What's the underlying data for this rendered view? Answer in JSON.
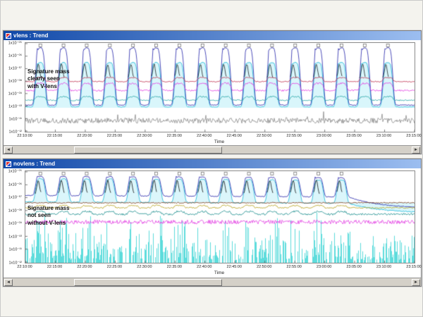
{
  "colors": {
    "titlebar_left": "#1048a8",
    "titlebar_right": "#9cbef0",
    "workspace_bg": "#f4f3ee",
    "scrollbar_bg": "#d4d0c8"
  },
  "scrollbar": {
    "left_arrow": "◄",
    "right_arrow": "►"
  },
  "windows": [
    {
      "title": "vlens : Trend"
    },
    {
      "title": "novlens : Trend"
    }
  ],
  "chart_data": [
    {
      "type": "line",
      "title": "vlens : Trend",
      "xlabel": "Time",
      "annotation": "Signature mass\nclearly seen\nwith V-lens",
      "span_min": 65,
      "x_ticks": [
        "22:10:00",
        "22:15:00",
        "22:20:00",
        "22:25:00",
        "22:30:00",
        "22:35:00",
        "22:40:00",
        "22:45:00",
        "22:50:00",
        "22:55:00",
        "23:00:00",
        "23:05:00",
        "23:10:00",
        "23:15:00"
      ],
      "y_ticks": [
        "1x10⁻⁰⁵",
        "1x10⁻⁰⁶",
        "1x10⁻⁰⁷",
        "1x10⁻⁰⁸",
        "1x10⁻⁰⁹",
        "1x10⁻¹⁰",
        "1x10⁻¹¹",
        "1x10⁻¹²"
      ],
      "peaks": {
        "first_min": 2.5,
        "period_min": 3.87,
        "count": 16,
        "half_min": 0.9
      },
      "seed": 7,
      "series": [
        {
          "name": "signature-mass-cyan",
          "color": "#18b8d8",
          "mode": "peaks",
          "base": 0.28,
          "amp": 0.5,
          "pow": 4,
          "noise": 0.004,
          "spike": 0.05,
          "fill": "rgba(210,244,250,0.85)"
        },
        {
          "name": "total-pressure-blue",
          "color": "#2222aa",
          "mode": "peaks",
          "base": 0.3,
          "amp": 0.645,
          "pow": 4,
          "noise": 0.004,
          "spike": 0.07
        },
        {
          "name": "peak-top-black",
          "color": "#222222",
          "mode": "peaks-only",
          "base": 0.6,
          "amp": 0.16
        },
        {
          "name": "mass-red",
          "color": "#c23352",
          "mode": "peaks",
          "base": 0.565,
          "amp": 0.045,
          "pow": 6,
          "noise": 0.006
        },
        {
          "name": "mass-magenta",
          "color": "#e33fe3",
          "mode": "peaks",
          "base": 0.465,
          "amp": 0.08,
          "pow": 6,
          "noise": 0.009
        },
        {
          "name": "mass-teal",
          "color": "#2aa8a8",
          "mode": "peaks",
          "base": 0.355,
          "amp": 0.04,
          "pow": 6,
          "noise": 0.007
        },
        {
          "name": "baseline-gray",
          "color": "#8a8a8a",
          "mode": "noise",
          "base": 0.125,
          "noise": 0.03,
          "spikes": 0.09
        }
      ]
    },
    {
      "type": "line",
      "title": "novlens : Trend",
      "xlabel": "Time",
      "annotation": "Signature mass\nnot seen\nwithout V-lens",
      "span_min": 65,
      "x_ticks": [
        "22:10:00",
        "22:15:00",
        "22:20:00",
        "22:25:00",
        "22:30:00",
        "22:35:00",
        "22:40:00",
        "22:45:00",
        "22:50:00",
        "22:55:00",
        "23:00:00",
        "23:05:00",
        "23:10:00",
        "23:15:00"
      ],
      "y_ticks": [
        "1x10⁻⁰⁵",
        "1x10⁻⁰⁶",
        "1x10⁻⁰⁷",
        "1x10⁻⁰⁸",
        "1x10⁻⁰⁹",
        "1x10⁻¹⁰",
        "1x10⁻¹¹",
        "1x10⁻¹²"
      ],
      "peaks": {
        "first_min": 2.5,
        "period_min": 3.87,
        "count": 14,
        "half_min": 0.9
      },
      "seed": 21,
      "series": [
        {
          "name": "signature-noise-comb",
          "color": "#00c8c8",
          "mode": "comb",
          "base": 0.05,
          "amp": 0.4
        },
        {
          "name": "signature-mass-cyan",
          "color": "#18b8d8",
          "mode": "peaks",
          "base": 0.665,
          "amp": 0.255,
          "pow": 4,
          "noise": 0.005,
          "fill": "rgba(210,244,250,0.8)",
          "trend": -0.02,
          "end_decay": 0.1
        },
        {
          "name": "total-pressure-blue",
          "color": "#2222aa",
          "mode": "peaks",
          "base": 0.735,
          "amp": 0.21,
          "pow": 4,
          "noise": 0.004,
          "spike": 0.03,
          "trend": -0.02,
          "end_decay": 0.12
        },
        {
          "name": "peak-top-black",
          "color": "#111111",
          "mode": "peaks-only",
          "base": 0.75,
          "amp": 0.15
        },
        {
          "name": "mass-brown",
          "color": "#7a3a1a",
          "mode": "noise",
          "base": 0.655,
          "noise": 0.006
        },
        {
          "name": "mass-olive",
          "color": "#b8a21e",
          "mode": "peaks",
          "base": 0.6,
          "amp": 0.025,
          "pow": 6,
          "noise": 0.007
        },
        {
          "name": "mass-teal",
          "color": "#1f9090",
          "mode": "peaks",
          "base": 0.53,
          "amp": 0.03,
          "pow": 6,
          "noise": 0.01
        },
        {
          "name": "mass-magenta",
          "color": "#e33fe3",
          "mode": "noise",
          "base": 0.445,
          "noise": 0.022
        }
      ]
    }
  ]
}
